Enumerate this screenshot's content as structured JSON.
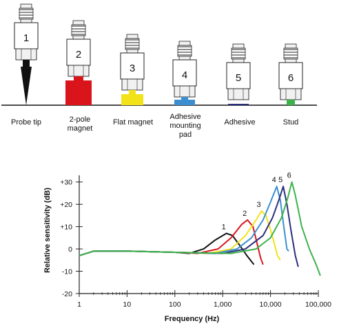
{
  "sensors": [
    {
      "number": "1",
      "label": "Probe tip",
      "mount_color": "#111111"
    },
    {
      "number": "2",
      "label": "2-pole magnet",
      "mount_color": "#d9151b"
    },
    {
      "number": "3",
      "label": "Flat magnet",
      "mount_color": "#f2e21a"
    },
    {
      "number": "4",
      "label": "Adhesive mounting pad",
      "mount_color": "#3b8fd0"
    },
    {
      "number": "5",
      "label": "Adhesive",
      "mount_color": "#2a2f7a"
    },
    {
      "number": "6",
      "label": "Stud",
      "mount_color": "#3cb24a"
    }
  ],
  "chart_data": {
    "type": "line",
    "title": "",
    "xlabel": "Frequency (Hz)",
    "ylabel": "Relative sensitivity (dB)",
    "x_scale": "log",
    "xlim": [
      1,
      100000
    ],
    "ylim": [
      -20,
      33
    ],
    "x_ticks": [
      1,
      10,
      100,
      1000,
      10000,
      100000
    ],
    "x_tick_labels": [
      "1",
      "10",
      "100",
      "1,000",
      "10,000",
      "100,000"
    ],
    "y_ticks": [
      30,
      20,
      10,
      0,
      -10,
      -20
    ],
    "y_tick_labels": [
      "+30",
      "+20",
      "+10",
      "0",
      "-10",
      "-20"
    ],
    "grid": false,
    "legend": "none",
    "series": [
      {
        "name": "1",
        "color": "#111111",
        "points": [
          [
            1,
            -3
          ],
          [
            2,
            -1
          ],
          [
            10,
            -1
          ],
          [
            100,
            -1.5
          ],
          [
            200,
            -2
          ],
          [
            400,
            0
          ],
          [
            700,
            4
          ],
          [
            1200,
            7
          ],
          [
            1600,
            6
          ],
          [
            2200,
            2
          ],
          [
            3200,
            -3
          ],
          [
            4500,
            -7
          ]
        ]
      },
      {
        "name": "2",
        "color": "#d9151b",
        "points": [
          [
            1,
            -3
          ],
          [
            2,
            -1
          ],
          [
            10,
            -1
          ],
          [
            100,
            -1.5
          ],
          [
            300,
            -2
          ],
          [
            800,
            0
          ],
          [
            1500,
            5
          ],
          [
            2500,
            11
          ],
          [
            3300,
            13
          ],
          [
            4300,
            10
          ],
          [
            5300,
            2
          ],
          [
            6200,
            -4
          ],
          [
            7000,
            -7
          ]
        ]
      },
      {
        "name": "3",
        "color": "#f2e21a",
        "points": [
          [
            1,
            -3
          ],
          [
            2,
            -1
          ],
          [
            10,
            -1
          ],
          [
            100,
            -1.5
          ],
          [
            500,
            -2
          ],
          [
            1500,
            0
          ],
          [
            3000,
            6
          ],
          [
            5000,
            13
          ],
          [
            6500,
            17
          ],
          [
            8000,
            15
          ],
          [
            9500,
            10
          ],
          [
            11500,
            4
          ],
          [
            14000,
            -3
          ],
          [
            16000,
            -5
          ]
        ]
      },
      {
        "name": "4",
        "color": "#3b8fd0",
        "points": [
          [
            1,
            -3
          ],
          [
            2,
            -1
          ],
          [
            10,
            -1
          ],
          [
            100,
            -1.5
          ],
          [
            700,
            -2
          ],
          [
            2000,
            0
          ],
          [
            4000,
            5
          ],
          [
            7000,
            13
          ],
          [
            10000,
            21
          ],
          [
            13500,
            28
          ],
          [
            16000,
            22
          ],
          [
            19000,
            10
          ],
          [
            22000,
            0
          ],
          [
            24000,
            -1
          ]
        ]
      },
      {
        "name": "5",
        "color": "#2a2f7a",
        "points": [
          [
            1,
            -3
          ],
          [
            2,
            -1
          ],
          [
            10,
            -1
          ],
          [
            100,
            -1.5
          ],
          [
            1000,
            -2
          ],
          [
            3000,
            0
          ],
          [
            7000,
            6
          ],
          [
            11000,
            14
          ],
          [
            15000,
            22
          ],
          [
            18500,
            28
          ],
          [
            22000,
            20
          ],
          [
            27000,
            8
          ],
          [
            33000,
            -3
          ],
          [
            38000,
            -8
          ]
        ]
      },
      {
        "name": "6",
        "color": "#3cb24a",
        "points": [
          [
            1,
            -3
          ],
          [
            2,
            -1
          ],
          [
            10,
            -1
          ],
          [
            100,
            -1.5
          ],
          [
            1500,
            -2
          ],
          [
            5000,
            0
          ],
          [
            10000,
            5
          ],
          [
            17000,
            14
          ],
          [
            23000,
            23
          ],
          [
            28000,
            30
          ],
          [
            33000,
            24
          ],
          [
            45000,
            10
          ],
          [
            65000,
            0
          ],
          [
            90000,
            -7
          ],
          [
            110000,
            -12
          ]
        ]
      }
    ]
  }
}
